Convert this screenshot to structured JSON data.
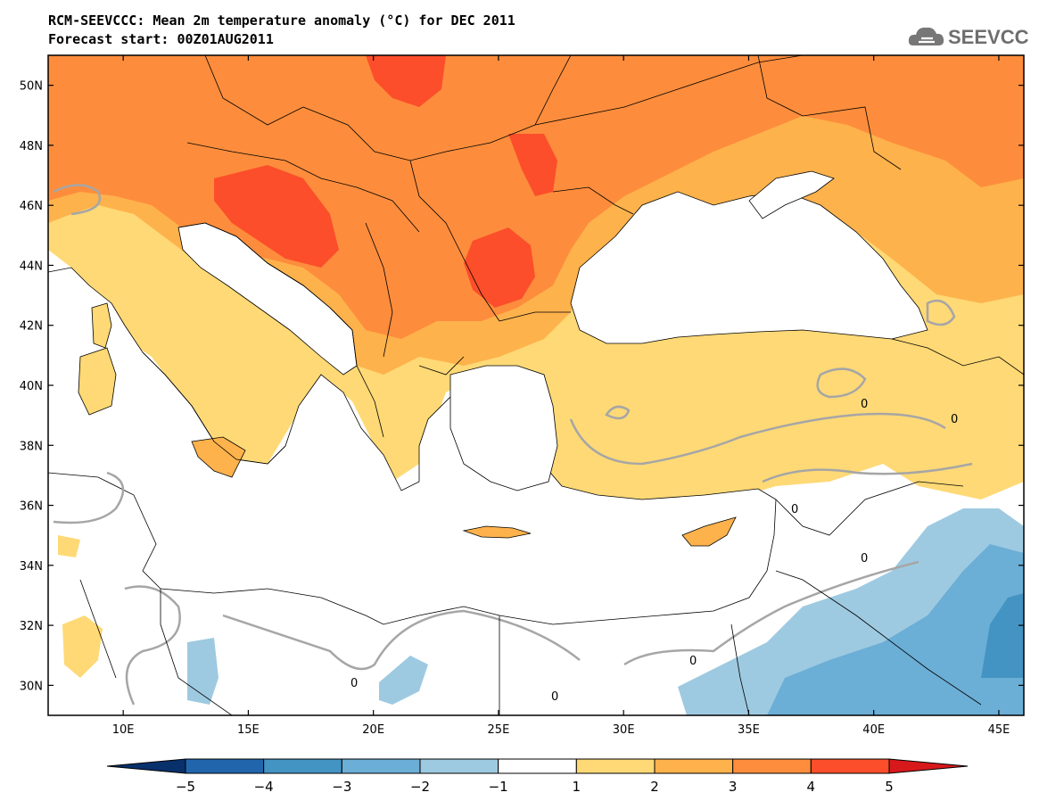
{
  "header": {
    "title": "RCM-SEEVCCC: Mean 2m temperature anomaly (°C) for DEC 2011",
    "subtitle": "Forecast start: 00Z01AUG2011"
  },
  "logo": {
    "text": "SEEVCCC",
    "icon": "cloud-icon"
  },
  "map": {
    "lon_range": [
      7,
      46
    ],
    "lat_range": [
      29,
      51
    ],
    "lat_ticks": [
      {
        "value": 50,
        "label": "50N"
      },
      {
        "value": 48,
        "label": "48N"
      },
      {
        "value": 46,
        "label": "46N"
      },
      {
        "value": 44,
        "label": "44N"
      },
      {
        "value": 42,
        "label": "42N"
      },
      {
        "value": 40,
        "label": "40N"
      },
      {
        "value": 38,
        "label": "38N"
      },
      {
        "value": 36,
        "label": "36N"
      },
      {
        "value": 34,
        "label": "34N"
      },
      {
        "value": 32,
        "label": "32N"
      },
      {
        "value": 30,
        "label": "30N"
      }
    ],
    "lon_ticks": [
      {
        "value": 10,
        "label": "10E"
      },
      {
        "value": 15,
        "label": "15E"
      },
      {
        "value": 20,
        "label": "20E"
      },
      {
        "value": 25,
        "label": "25E"
      },
      {
        "value": 30,
        "label": "30E"
      },
      {
        "value": 35,
        "label": "35E"
      },
      {
        "value": 40,
        "label": "40E"
      },
      {
        "value": 45,
        "label": "45E"
      }
    ],
    "contour_label": "0"
  },
  "colorbar": {
    "bins": [
      {
        "min": -99,
        "max": -5,
        "color": "#08306b"
      },
      {
        "min": -5,
        "max": -4,
        "color": "#2166ac"
      },
      {
        "min": -4,
        "max": -3,
        "color": "#4393c3"
      },
      {
        "min": -3,
        "max": -2,
        "color": "#6baed6"
      },
      {
        "min": -2,
        "max": -1,
        "color": "#9ecae1"
      },
      {
        "min": -1,
        "max": 1,
        "color": "#ffffff"
      },
      {
        "min": 1,
        "max": 2,
        "color": "#fed976"
      },
      {
        "min": 2,
        "max": 3,
        "color": "#feb24c"
      },
      {
        "min": 3,
        "max": 4,
        "color": "#fd8d3c"
      },
      {
        "min": 4,
        "max": 5,
        "color": "#fc4e2a"
      },
      {
        "min": 5,
        "max": 99,
        "color": "#d7191c"
      }
    ],
    "labels": [
      "−5",
      "−4",
      "−3",
      "−2",
      "−1",
      "1",
      "2",
      "3",
      "4",
      "5"
    ]
  }
}
